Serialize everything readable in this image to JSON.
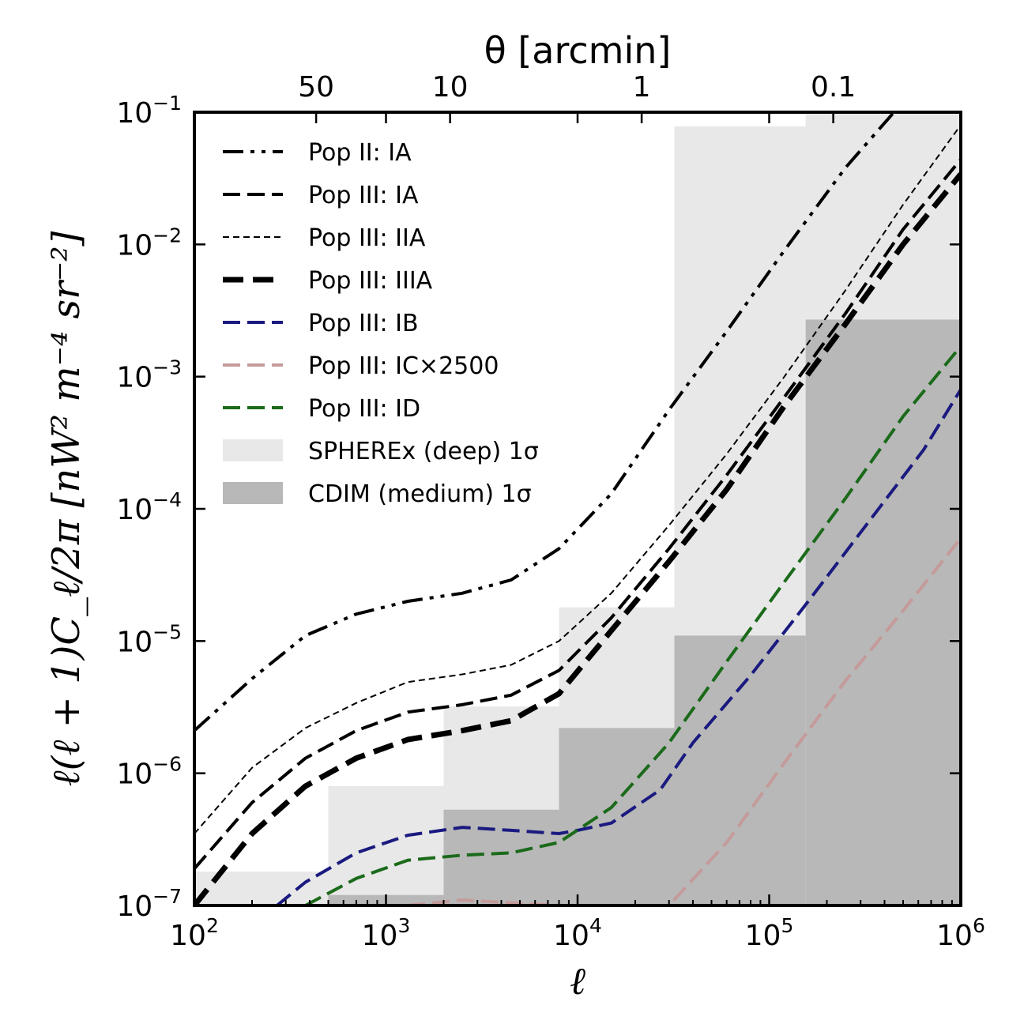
{
  "chart_data": {
    "type": "line",
    "x_axis": {
      "label": "ℓ",
      "scale": "log",
      "range": [
        100,
        1000000
      ],
      "ticks": [
        100,
        1000,
        10000,
        100000,
        1000000
      ],
      "tick_labels": [
        {
          "base": "10",
          "exp": "2"
        },
        {
          "base": "10",
          "exp": "3"
        },
        {
          "base": "10",
          "exp": "4"
        },
        {
          "base": "10",
          "exp": "5"
        },
        {
          "base": "10",
          "exp": "6"
        }
      ]
    },
    "y_axis": {
      "label": "ℓ(ℓ + 1)C_ℓ/2π [nW² m⁻⁴ sr⁻²]",
      "scale": "log",
      "range": [
        1e-07,
        0.1
      ],
      "ticks": [
        1e-07,
        1e-06,
        1e-05,
        0.0001,
        0.001,
        0.01,
        0.1
      ],
      "tick_labels": [
        {
          "base": "10",
          "exp": "−7"
        },
        {
          "base": "10",
          "exp": "−6"
        },
        {
          "base": "10",
          "exp": "−5"
        },
        {
          "base": "10",
          "exp": "−4"
        },
        {
          "base": "10",
          "exp": "−3"
        },
        {
          "base": "10",
          "exp": "−2"
        },
        {
          "base": "10",
          "exp": "−1"
        }
      ]
    },
    "top_axis": {
      "label": "θ [arcmin]",
      "ticks": [
        {
          "label": "50",
          "ell": 432
        },
        {
          "label": "10",
          "ell": 2160
        },
        {
          "label": "1",
          "ell": 21600
        },
        {
          "label": "0.1",
          "ell": 216000
        }
      ]
    },
    "grid": false,
    "legend_position": "top-left",
    "bands": [
      {
        "name": "SPHEREx (deep) 1σ",
        "color": "#e8e8e8",
        "bins": [
          {
            "x0": 100,
            "x1": 500,
            "y": 1.8e-07
          },
          {
            "x0": 500,
            "x1": 2000,
            "y": 8e-07
          },
          {
            "x0": 2000,
            "x1": 8000,
            "y": 3.2e-06
          },
          {
            "x0": 8000,
            "x1": 32000,
            "y": 1.8e-05
          },
          {
            "x0": 32000,
            "x1": 155000,
            "y": 0.078
          },
          {
            "x0": 155000,
            "x1": 1000000,
            "y": 0.1
          }
        ]
      },
      {
        "name": "CDIM (medium) 1σ",
        "color": "#b8b8b8",
        "bins": [
          {
            "x0": 500,
            "x1": 2000,
            "y": 1.2e-07
          },
          {
            "x0": 2000,
            "x1": 8000,
            "y": 5.3e-07
          },
          {
            "x0": 8000,
            "x1": 32000,
            "y": 2.2e-06
          },
          {
            "x0": 32000,
            "x1": 155000,
            "y": 1.1e-05
          },
          {
            "x0": 155000,
            "x1": 1000000,
            "y": 0.0027
          }
        ]
      }
    ],
    "series": [
      {
        "name": "Pop II: IA",
        "color": "#000000",
        "style": "dashdotdot",
        "width": 4,
        "x": [
          100,
          200,
          380,
          700,
          1300,
          2500,
          4500,
          8000,
          15000,
          30000,
          60000,
          120000,
          250000,
          500000,
          1000000
        ],
        "y": [
          2.1e-06,
          5.2e-06,
          1.1e-05,
          1.6e-05,
          2e-05,
          2.3e-05,
          2.9e-05,
          5e-05,
          0.00013,
          0.00056,
          0.0022,
          0.009,
          0.038,
          0.12,
          0.3
        ]
      },
      {
        "name": "Pop III: IA",
        "color": "#000000",
        "style": "dash",
        "width": 4,
        "x": [
          100,
          200,
          380,
          700,
          1300,
          2500,
          4500,
          8000,
          15000,
          30000,
          60000,
          120000,
          250000,
          500000,
          1000000
        ],
        "y": [
          1.9e-07,
          6e-07,
          1.3e-06,
          2.1e-06,
          2.9e-06,
          3.3e-06,
          3.9e-06,
          6e-06,
          1.5e-05,
          5e-05,
          0.00018,
          0.0007,
          0.003,
          0.013,
          0.044
        ]
      },
      {
        "name": "Pop III: IIA",
        "color": "#000000",
        "style": "dash-thin",
        "width": 2,
        "x": [
          100,
          200,
          380,
          700,
          1300,
          2500,
          4500,
          8000,
          15000,
          30000,
          60000,
          120000,
          250000,
          500000,
          1000000
        ],
        "y": [
          3.5e-07,
          1.1e-06,
          2.2e-06,
          3.4e-06,
          4.9e-06,
          5.6e-06,
          6.6e-06,
          1e-05,
          2.3e-05,
          7.5e-05,
          0.00026,
          0.001,
          0.0045,
          0.02,
          0.08
        ]
      },
      {
        "name": "Pop III: IIIA",
        "color": "#000000",
        "style": "dash-thick",
        "width": 7,
        "x": [
          100,
          200,
          380,
          700,
          1300,
          2500,
          4500,
          8000,
          15000,
          30000,
          60000,
          120000,
          250000,
          500000,
          1000000
        ],
        "y": [
          1e-07,
          3.5e-07,
          8e-07,
          1.3e-06,
          1.8e-06,
          2.1e-06,
          2.5e-06,
          4e-06,
          1.2e-05,
          4e-05,
          0.00014,
          0.0006,
          0.0025,
          0.01,
          0.034
        ]
      },
      {
        "name": "Pop III: IB",
        "color": "#1a1a80",
        "style": "dash",
        "width": 4,
        "x": [
          270,
          380,
          700,
          1300,
          2500,
          4500,
          8000,
          10000,
          15000,
          27000,
          40000,
          80000,
          160000,
          320000,
          640000,
          1000000
        ],
        "y": [
          1e-07,
          1.5e-07,
          2.5e-07,
          3.4e-07,
          3.9e-07,
          3.7e-07,
          3.5e-07,
          3.7e-07,
          4.2e-07,
          7.5e-07,
          1.7e-06,
          5.5e-06,
          2e-05,
          7.5e-05,
          0.00028,
          0.0008
        ]
      },
      {
        "name": "Pop III: IC×2500",
        "color": "#c49a9a",
        "style": "dash",
        "width": 4,
        "x": [
          1300,
          2500,
          4500,
          8000,
          14000,
          20000,
          30000,
          60000,
          120000,
          250000,
          500000,
          1000000
        ],
        "y": [
          1e-07,
          1.1e-07,
          1.05e-07,
          1e-07,
          9.5e-08,
          9e-08,
          1e-07,
          3e-07,
          1.2e-06,
          5e-06,
          1.7e-05,
          6e-05
        ]
      },
      {
        "name": "Pop III: ID",
        "color": "#1a6a1a",
        "style": "dash",
        "width": 4,
        "x": [
          380,
          700,
          1300,
          2500,
          4500,
          8000,
          15000,
          30000,
          60000,
          120000,
          250000,
          500000,
          1000000
        ],
        "y": [
          1e-07,
          1.6e-07,
          2.2e-07,
          2.4e-07,
          2.5e-07,
          3e-07,
          5.5e-07,
          1.7e-06,
          7e-06,
          2.8e-05,
          0.00012,
          0.0005,
          0.0017
        ]
      }
    ]
  }
}
